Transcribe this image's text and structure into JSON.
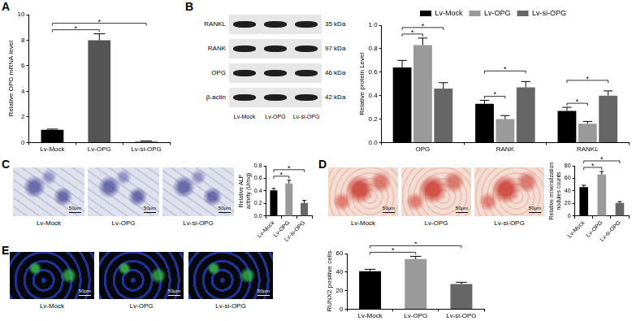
{
  "chart_data": [
    {
      "panel": "A",
      "type": "bar",
      "y_label": "Relative OPG mRNA level",
      "categories": [
        "Lv-Mock",
        "Lv-OPG",
        "Lv-si-OPG"
      ],
      "values": [
        1.0,
        8.0,
        0.1
      ],
      "errors": [
        0.05,
        0.5,
        0.03
      ],
      "colors": [
        "#000000",
        "#555555",
        "#888888"
      ],
      "ylim": [
        0,
        10
      ],
      "yticks": [
        0,
        2,
        4,
        6,
        8,
        10
      ],
      "grid": false,
      "significance": [
        {
          "from": 0,
          "to": 1,
          "label": "*"
        },
        {
          "from": 0,
          "to": 2,
          "label": "*"
        }
      ]
    },
    {
      "panel": "B",
      "type": "bar",
      "y_label": "Relative protein Level",
      "categories": [
        "OPG",
        "RANK",
        "RANKL"
      ],
      "series": [
        {
          "name": "Lv-Mock",
          "color": "#000000",
          "values": [
            0.64,
            0.33,
            0.27
          ],
          "errors": [
            0.06,
            0.03,
            0.03
          ]
        },
        {
          "name": "Lv-OPG",
          "color": "#9a9a9a",
          "values": [
            0.83,
            0.2,
            0.16
          ],
          "errors": [
            0.06,
            0.03,
            0.02
          ]
        },
        {
          "name": "Lv-si-OPG",
          "color": "#666666",
          "values": [
            0.46,
            0.47,
            0.4
          ],
          "errors": [
            0.05,
            0.05,
            0.04
          ]
        }
      ],
      "ylim": [
        0,
        1.0
      ],
      "yticks": [
        {
          "value": 0,
          "label": "0.0"
        },
        {
          "value": 0.2,
          "label": "0.2"
        },
        {
          "value": 0.4,
          "label": "0.4"
        },
        {
          "value": 0.6,
          "label": "0.6"
        },
        {
          "value": 0.8,
          "label": "0.8"
        },
        {
          "value": 1.0,
          "label": "1.0"
        }
      ],
      "grid": false,
      "legend": "top",
      "significance": [
        {
          "category": 0,
          "from": 0,
          "to": 1,
          "label": "*"
        },
        {
          "category": 0,
          "from": 0,
          "to": 2,
          "label": "*"
        },
        {
          "category": 1,
          "from": 0,
          "to": 1,
          "label": "*"
        },
        {
          "category": 1,
          "from": 0,
          "to": 2,
          "label": "*"
        },
        {
          "category": 2,
          "from": 0,
          "to": 1,
          "label": "*"
        },
        {
          "category": 2,
          "from": 0,
          "to": 2,
          "label": "*"
        }
      ]
    },
    {
      "panel": "C",
      "type": "bar",
      "y_label": "Relative ALP activity (U/mg)",
      "categories": [
        "Lv-Mock",
        "Lv-OPG",
        "Lv-si-OPG"
      ],
      "values": [
        0.41,
        0.52,
        0.21
      ],
      "errors": [
        0.03,
        0.05,
        0.04
      ],
      "colors": [
        "#000000",
        "#9a9a9a",
        "#666666"
      ],
      "ylim": [
        0,
        0.8
      ],
      "yticks": [
        {
          "value": 0,
          "label": "0.0"
        },
        {
          "value": 0.2,
          "label": "0.2"
        },
        {
          "value": 0.4,
          "label": "0.4"
        },
        {
          "value": 0.6,
          "label": "0.6"
        },
        {
          "value": 0.8,
          "label": "0.8"
        }
      ],
      "grid": false,
      "significance": [
        {
          "from": 0,
          "to": 1,
          "label": "*"
        },
        {
          "from": 0,
          "to": 2,
          "label": "*"
        }
      ]
    },
    {
      "panel": "D",
      "type": "bar",
      "y_label": "Relative mineralization nodules counts",
      "categories": [
        "Lv-Mock",
        "Lv-OPG",
        "Lv-si-OPG"
      ],
      "values": [
        46,
        66,
        21
      ],
      "errors": [
        3,
        5,
        2
      ],
      "colors": [
        "#000000",
        "#9a9a9a",
        "#666666"
      ],
      "ylim": [
        0,
        80
      ],
      "yticks": [
        0,
        20,
        40,
        60,
        80
      ],
      "grid": false,
      "significance": [
        {
          "from": 0,
          "to": 1,
          "label": "*"
        },
        {
          "from": 0,
          "to": 2,
          "label": "*"
        }
      ]
    },
    {
      "panel": "E",
      "type": "bar",
      "y_label": "RUNX2 positive cells",
      "categories": [
        "Lv-Mock",
        "Lv-OPG",
        "Lv-si-OPG"
      ],
      "values": [
        41,
        54,
        27
      ],
      "errors": [
        2,
        3,
        2
      ],
      "colors": [
        "#000000",
        "#9a9a9a",
        "#666666"
      ],
      "ylim": [
        0,
        60
      ],
      "yticks": [
        0,
        20,
        40,
        60
      ],
      "grid": false,
      "significance": [
        {
          "from": 0,
          "to": 1,
          "label": "*"
        },
        {
          "from": 0,
          "to": 2,
          "label": "*"
        }
      ]
    }
  ],
  "blot": {
    "rows": [
      {
        "label": "RANKL",
        "size": "35 kDa"
      },
      {
        "label": "RANK",
        "size": "97 kDa"
      },
      {
        "label": "OPG",
        "size": "46 kDa"
      },
      {
        "label": "β-actin",
        "size": "42 kDa"
      }
    ],
    "lanes": [
      "Lv-Mock",
      "Lv-OPG",
      "Lv-si-OPG"
    ]
  },
  "micrographs": [
    {
      "labels": [
        "Lv-Mock",
        "Lv-OPG",
        "Lv-si-OPG"
      ],
      "scale_bar": "50μm"
    },
    {
      "labels": [
        "Lv-Mock",
        "Lv-OPG",
        "Lv-si-OPG"
      ],
      "scale_bar": "50μm"
    },
    {
      "labels": [
        "Lv-Mock",
        "Lv-OPG",
        "Lv-si-OPG"
      ],
      "scale_bar": "50μm"
    }
  ]
}
